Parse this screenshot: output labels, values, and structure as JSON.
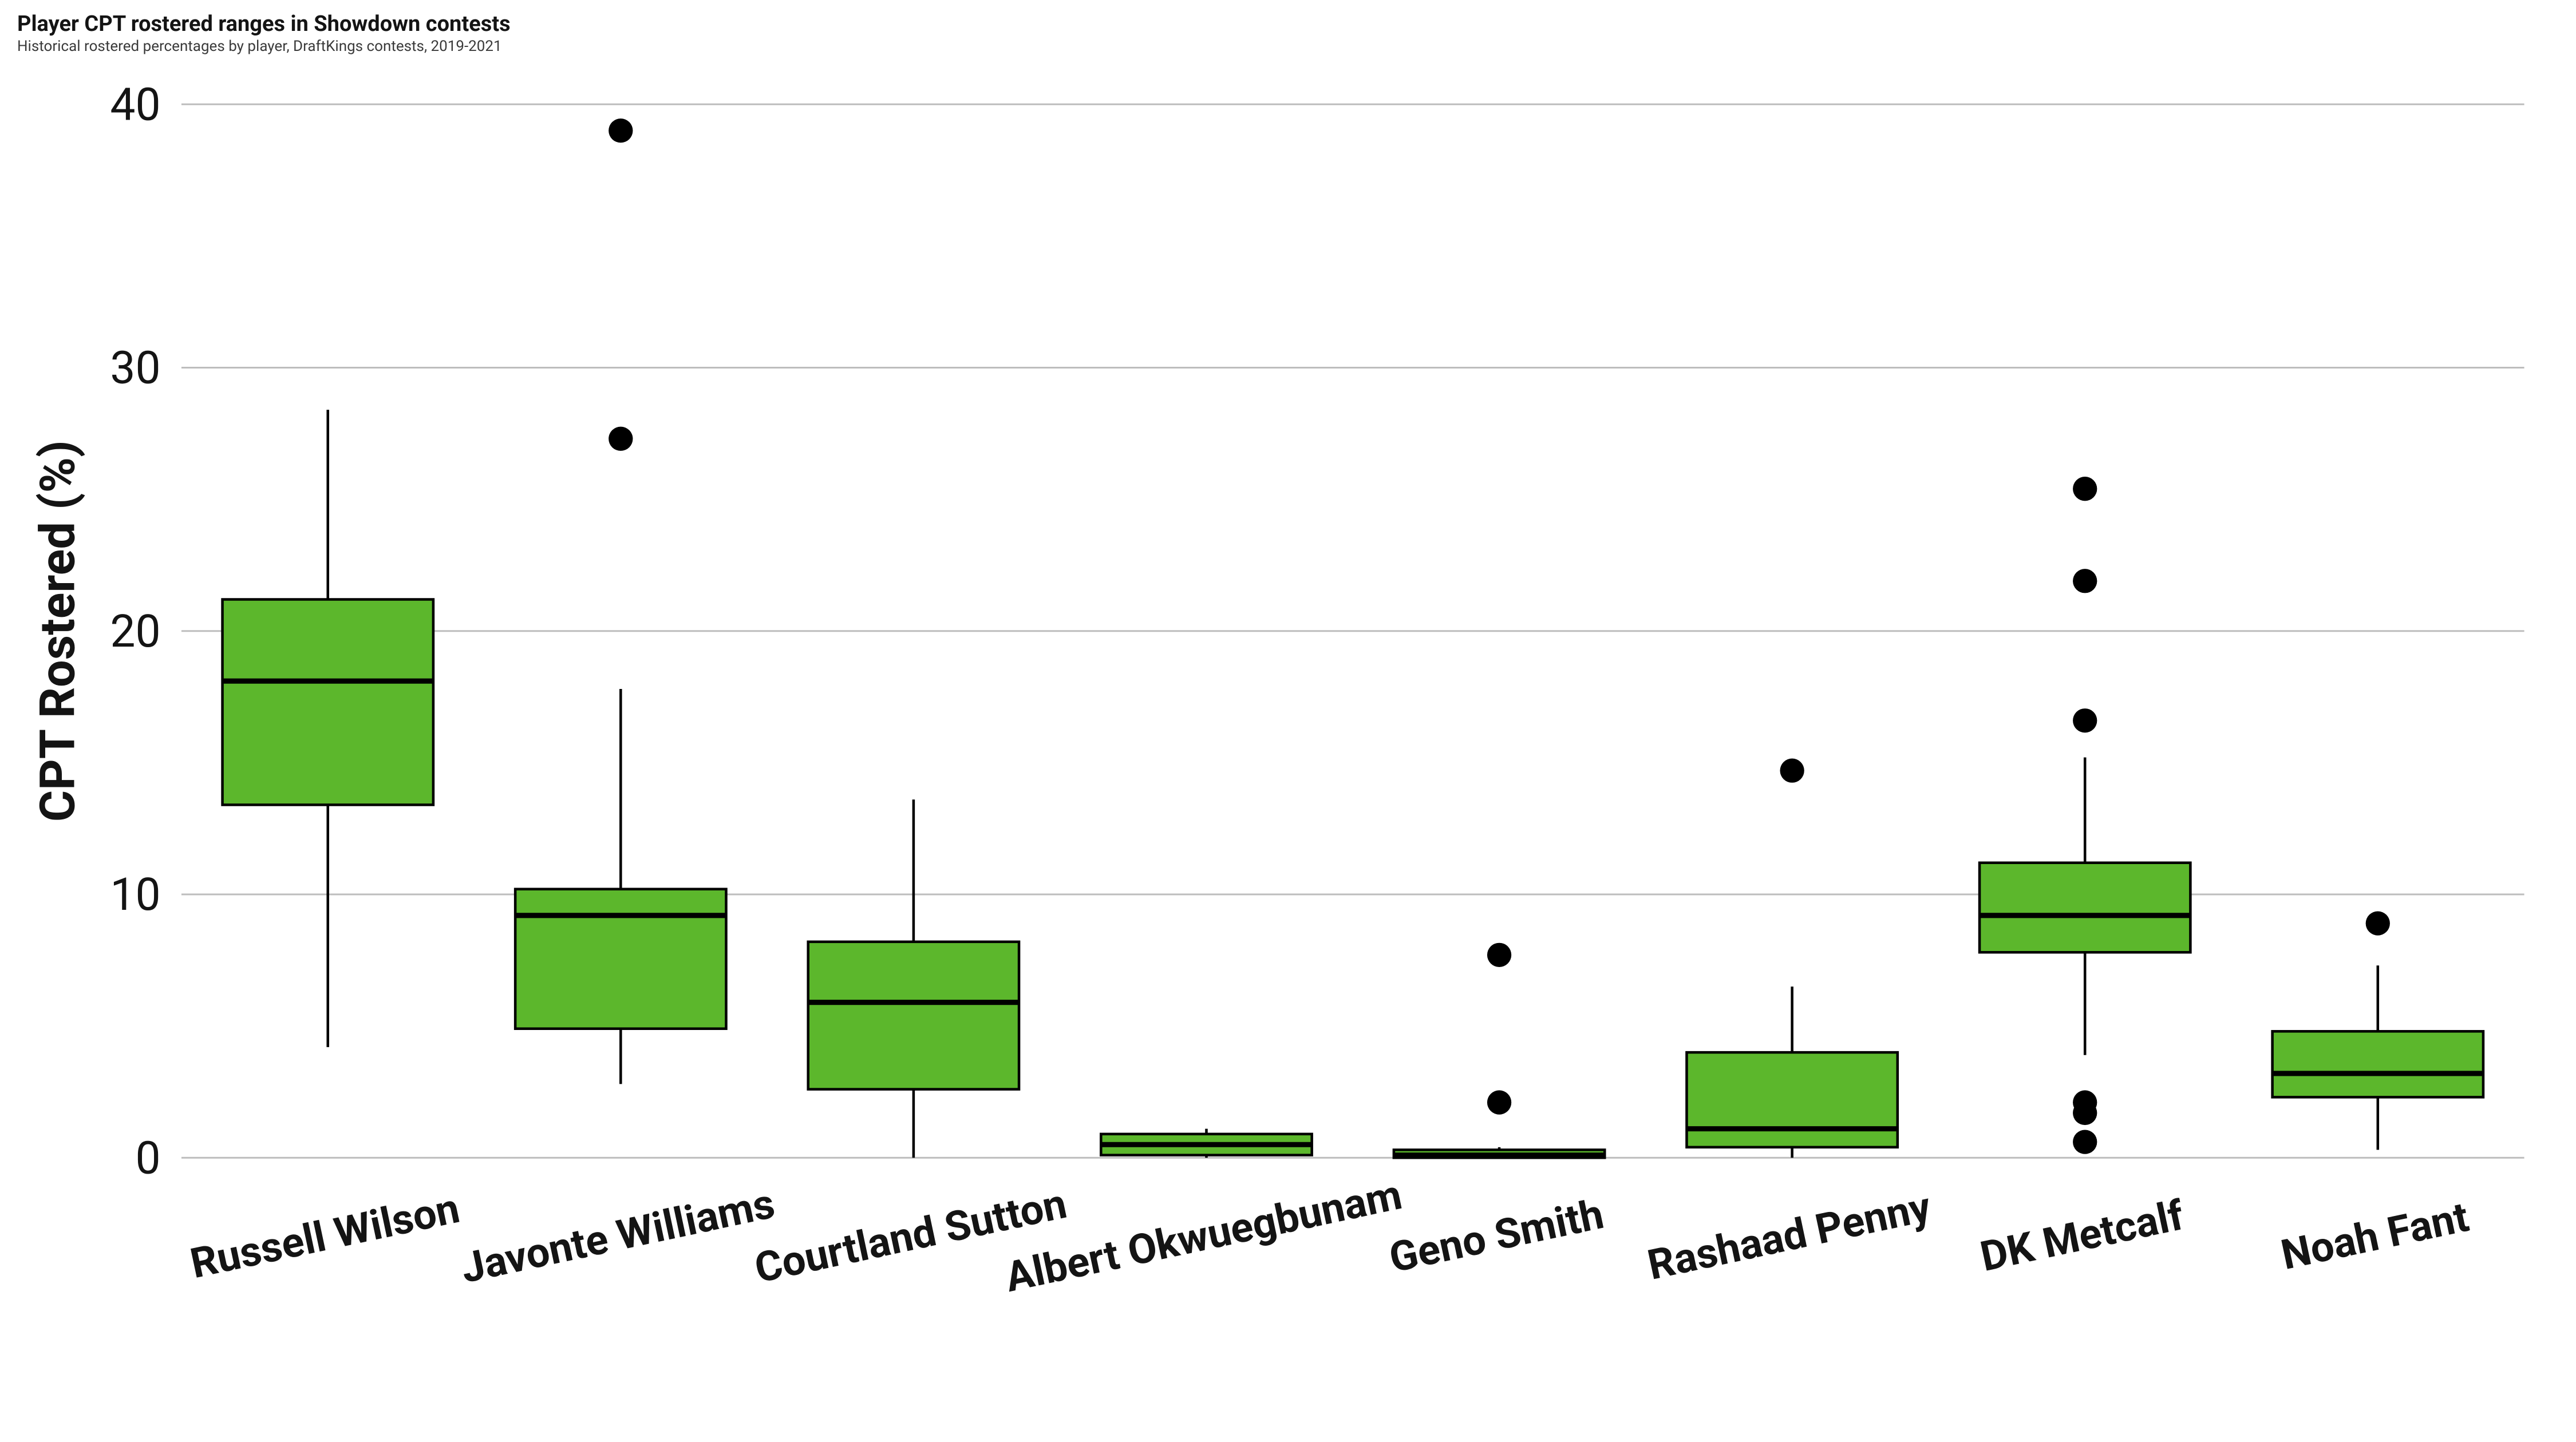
{
  "title": "Player CPT rostered ranges in Showdown contests",
  "subtitle": "Historical rostered percentages by player, DraftKings contests, 2019-2021",
  "ylabel": "CPT Rostered (%)",
  "chart": {
    "type": "boxplot",
    "background_color": "#ffffff",
    "grid_color": "#bdbdbd",
    "box_fill": "#5cb72c",
    "box_stroke": "#000000",
    "box_stroke_width": 1.5,
    "median_stroke": "#000000",
    "median_width": 3,
    "whisker_stroke": "#000000",
    "whisker_width": 1.5,
    "outlier_fill": "#000000",
    "outlier_radius": 7,
    "ylim": [
      -1,
      41
    ],
    "yticks": [
      0,
      10,
      20,
      30,
      40
    ],
    "title_fontsize": 38,
    "subtitle_fontsize": 26,
    "ylabel_fontsize": 28,
    "ytick_fontsize": 26,
    "xcat_fontsize": 24,
    "xcat_rotation": -12,
    "categories": [
      "Russell Wilson",
      "Javonte Williams",
      "Courtland Sutton",
      "Albert Okwuegbunam",
      "Geno Smith",
      "Rashaad Penny",
      "DK Metcalf",
      "Noah Fant"
    ],
    "boxes": [
      {
        "q1": 13.4,
        "median": 18.1,
        "q3": 21.2,
        "wlo": 4.2,
        "whi": 28.4,
        "outliers": []
      },
      {
        "q1": 4.9,
        "median": 9.2,
        "q3": 10.2,
        "wlo": 2.8,
        "whi": 17.8,
        "outliers": [
          27.3,
          39.0
        ]
      },
      {
        "q1": 2.6,
        "median": 5.9,
        "q3": 8.2,
        "wlo": 0.0,
        "whi": 13.6,
        "outliers": []
      },
      {
        "q1": 0.1,
        "median": 0.5,
        "q3": 0.9,
        "wlo": 0.0,
        "whi": 1.1,
        "outliers": []
      },
      {
        "q1": 0.0,
        "median": 0.1,
        "q3": 0.3,
        "wlo": 0.0,
        "whi": 0.4,
        "outliers": [
          2.1,
          7.7
        ]
      },
      {
        "q1": 0.4,
        "median": 1.1,
        "q3": 4.0,
        "wlo": 0.0,
        "whi": 6.5,
        "outliers": [
          14.7
        ]
      },
      {
        "q1": 7.8,
        "median": 9.2,
        "q3": 11.2,
        "wlo": 3.9,
        "whi": 15.2,
        "outliers": [
          0.6,
          1.7,
          2.1,
          16.6,
          21.9,
          25.4
        ]
      },
      {
        "q1": 2.3,
        "median": 3.2,
        "q3": 4.8,
        "wlo": 0.3,
        "whi": 7.3,
        "outliers": [
          8.9
        ]
      }
    ]
  }
}
